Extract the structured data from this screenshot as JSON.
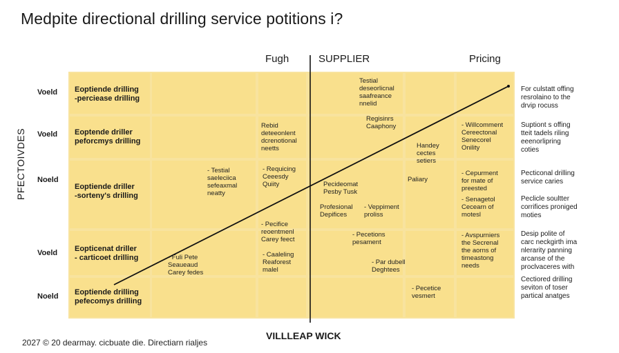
{
  "title": "Medpite directional drilling service potitions i?",
  "columns": {
    "left": "Fugh",
    "center": "SUPPLIER",
    "right": "Pricing"
  },
  "y_axis_label": "PFECTOIVDES",
  "x_axis_label": "VILLLEAP WICK",
  "footer": "2027 © 20 dearmay. cicbuate die. Directiarn rialjes",
  "rows": [
    {
      "label": "Voeld",
      "text": "Eoptiende drilling\n-perciease drilling"
    },
    {
      "label": "Voeld",
      "text": "Eoptende driller\npeforcmys drilling"
    },
    {
      "label": "Noeld",
      "text": "Eoptiende driller\n-sorteny's drilling"
    },
    {
      "label": "Voeld",
      "text": "Eopticenat driller\n- carticoet drilling"
    },
    {
      "label": "Noeld",
      "text": "Eoptiende drilling\npefecomys drilling"
    }
  ],
  "cell_notes": [
    "Testial\ndeseorlicnal\nsaafreance\nnnelid",
    "Regisinrs\nCaaphony",
    "Rebid\ndeteeonlent\ndcrenotional\nneetts",
    "Handey\ncectes\nsetiers",
    "- Testial\nsaeleciica\nsefeaxmal\nneatty",
    "- Requicing\nCeeesdy\nQuiity",
    "Pecideomat\nPesby Tusk",
    "Paliary",
    "Profesional\nDepifices",
    "- Veppiment\nproliss",
    "- Pecifice\nreoentmenl\nCarey feect",
    "- Pecetions\npesament",
    "- Fuli Pete\nSeaueaud\nCarey fedes",
    "- Caaleling\nReaforest\nmalel",
    "- Par dubell\nDeghtees",
    "- Pecetice\nvesmert"
  ],
  "grid_notes": [
    "- Willcomment\nCereectonal\nSenecorel\nOnility",
    "- Cepurment\nfor mate of\npreested",
    "- Senagetol\nCecearn of\nmotesl",
    "- Avspurniers\nthe Secrenal\nthe aorns of\ntimeastong\nneeds"
  ],
  "right_notes": [
    "For culstatt offing\nresrolaino to the\ndrvip rocuss",
    "Suptiont s offing\ntteit tadels riling\neeenorlipring\ncoties",
    "Pecticonal drilling\nservice caries",
    "Peclicle soultter\ncorrifices proniged\nmoties",
    "Desip polite of\ncarc neckgirth ima\nnlerarity panning\narcanse of the\nproclvaceres with",
    "Cectiored drilling\nseviton of toser\npartical anatges"
  ],
  "trend_line": {
    "from": "bottom-left",
    "to": "top-right"
  }
}
